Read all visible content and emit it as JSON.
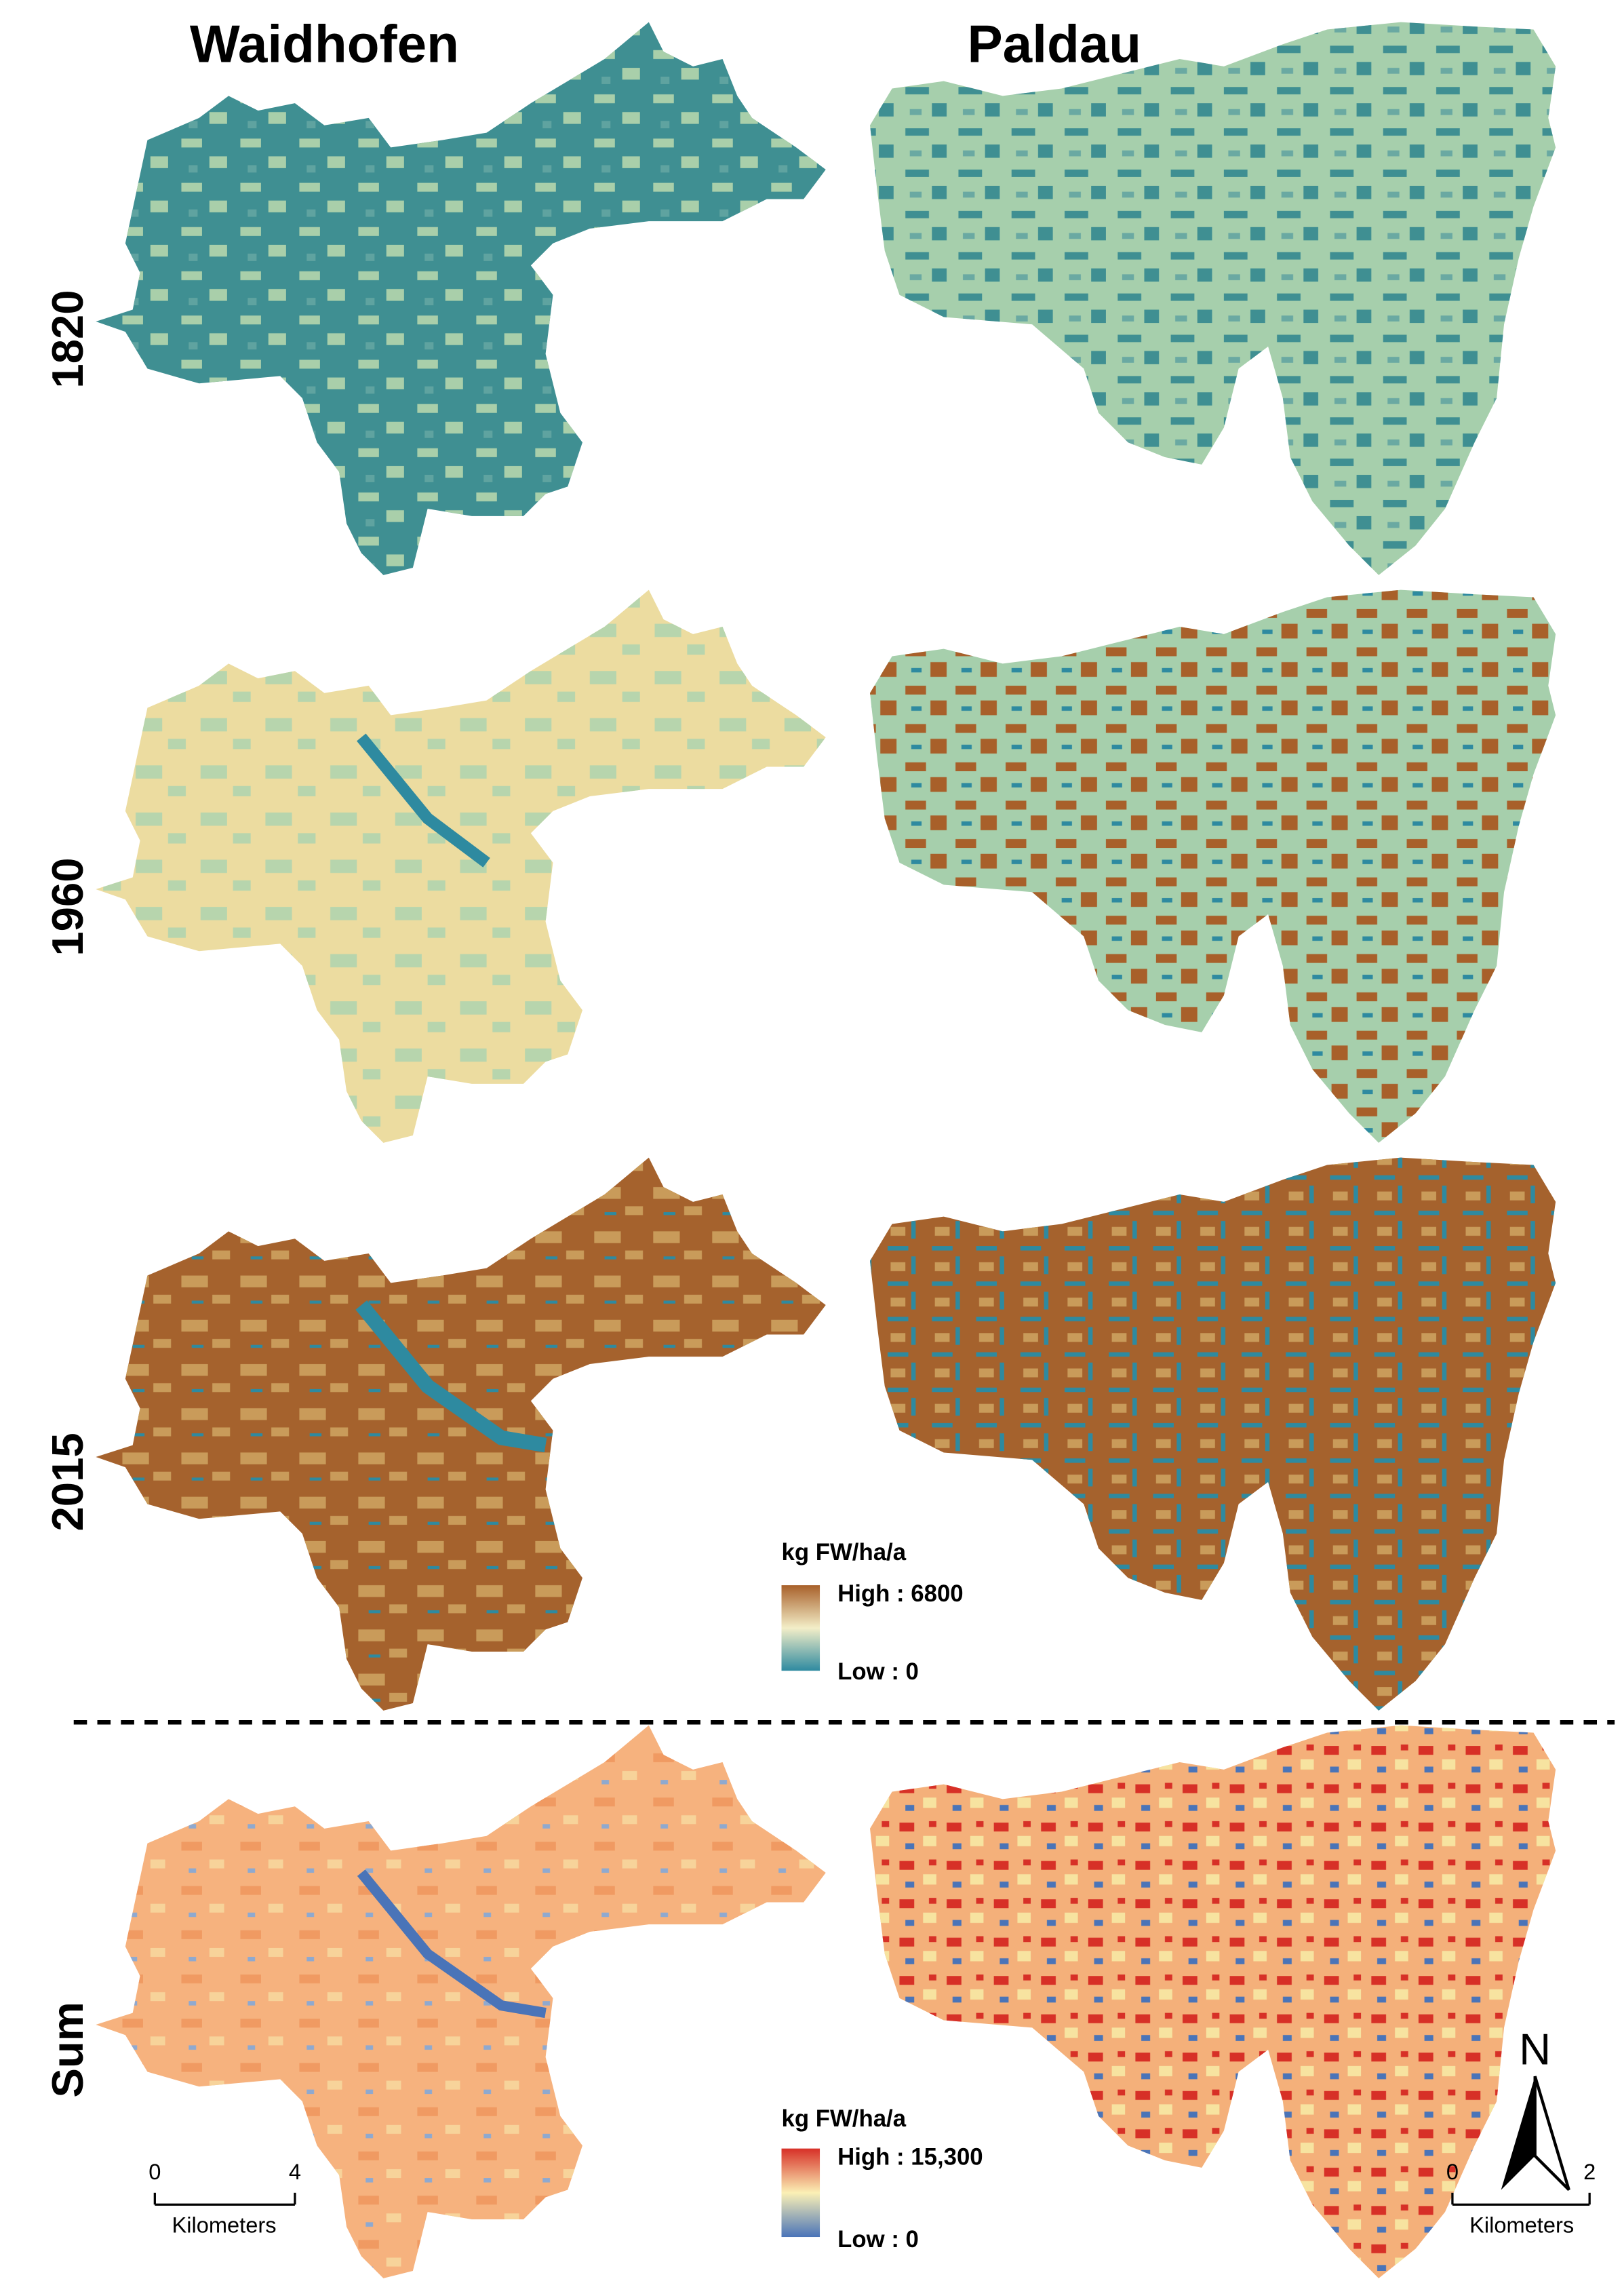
{
  "columns": [
    "Waidhofen",
    "Paldau"
  ],
  "rows": [
    "1820",
    "1960",
    "2015",
    "Sum"
  ],
  "legends": [
    {
      "title": "kg FW/ha/a",
      "high": "High : 6800",
      "low": "Low : 0"
    },
    {
      "title": "kg FW/ha/a",
      "high": "High : 15,300",
      "low": "Low : 0"
    }
  ],
  "scale_bars": [
    {
      "start": "0",
      "end": "4",
      "unit": "Kilometers"
    },
    {
      "start": "0",
      "end": "2",
      "unit": "Kilometers"
    }
  ],
  "north_label": "N"
}
